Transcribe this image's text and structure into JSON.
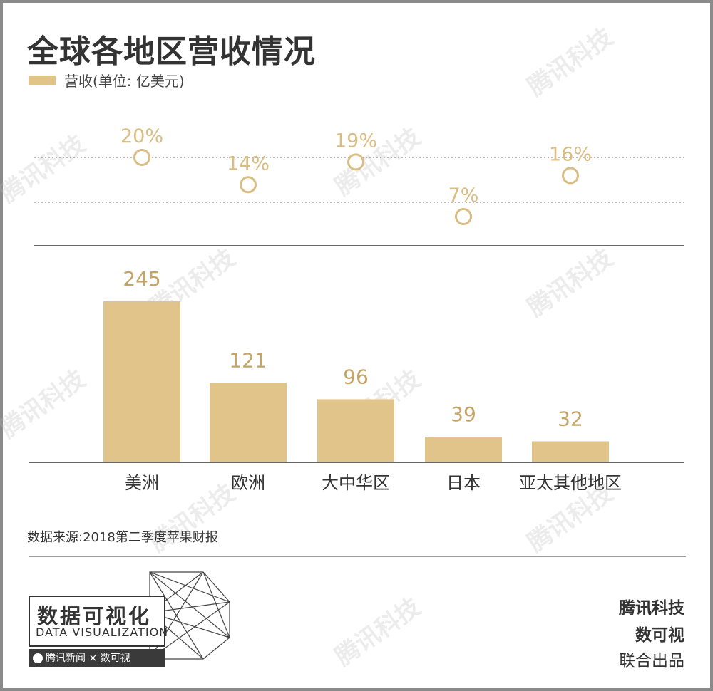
{
  "title": "全球各地区营收情况",
  "legend": {
    "label": "营收(单位: 亿美元)"
  },
  "colors": {
    "bar": "#e0c48a",
    "value_text": "#c4a567",
    "pct_text": "#d9bd83",
    "axis": "#333333"
  },
  "chart_data": {
    "type": "bar",
    "categories": [
      "美洲",
      "欧洲",
      "大中华区",
      "日本",
      "亚太其他地区"
    ],
    "series": [
      {
        "name": "营收(单位: 亿美元)",
        "values": [
          245,
          121,
          96,
          39,
          32
        ]
      }
    ],
    "growth": {
      "values": [
        20,
        14,
        19,
        7,
        16
      ],
      "labels": [
        "20%",
        "14%",
        "19%",
        "7%",
        "16%"
      ]
    },
    "value_labels": [
      "245",
      "121",
      "96",
      "39",
      "32"
    ],
    "ylim": [
      0,
      245
    ]
  },
  "source": "数据来源:2018第二季度苹果财报",
  "logo": {
    "cn": "数据可视化",
    "en": "DATA VISUALIZATION",
    "bar": "腾讯新闻 × 数可视"
  },
  "credits": {
    "line1": "腾讯科技",
    "line2": "数可视",
    "line3": "联合出品"
  },
  "watermark": "腾讯科技"
}
